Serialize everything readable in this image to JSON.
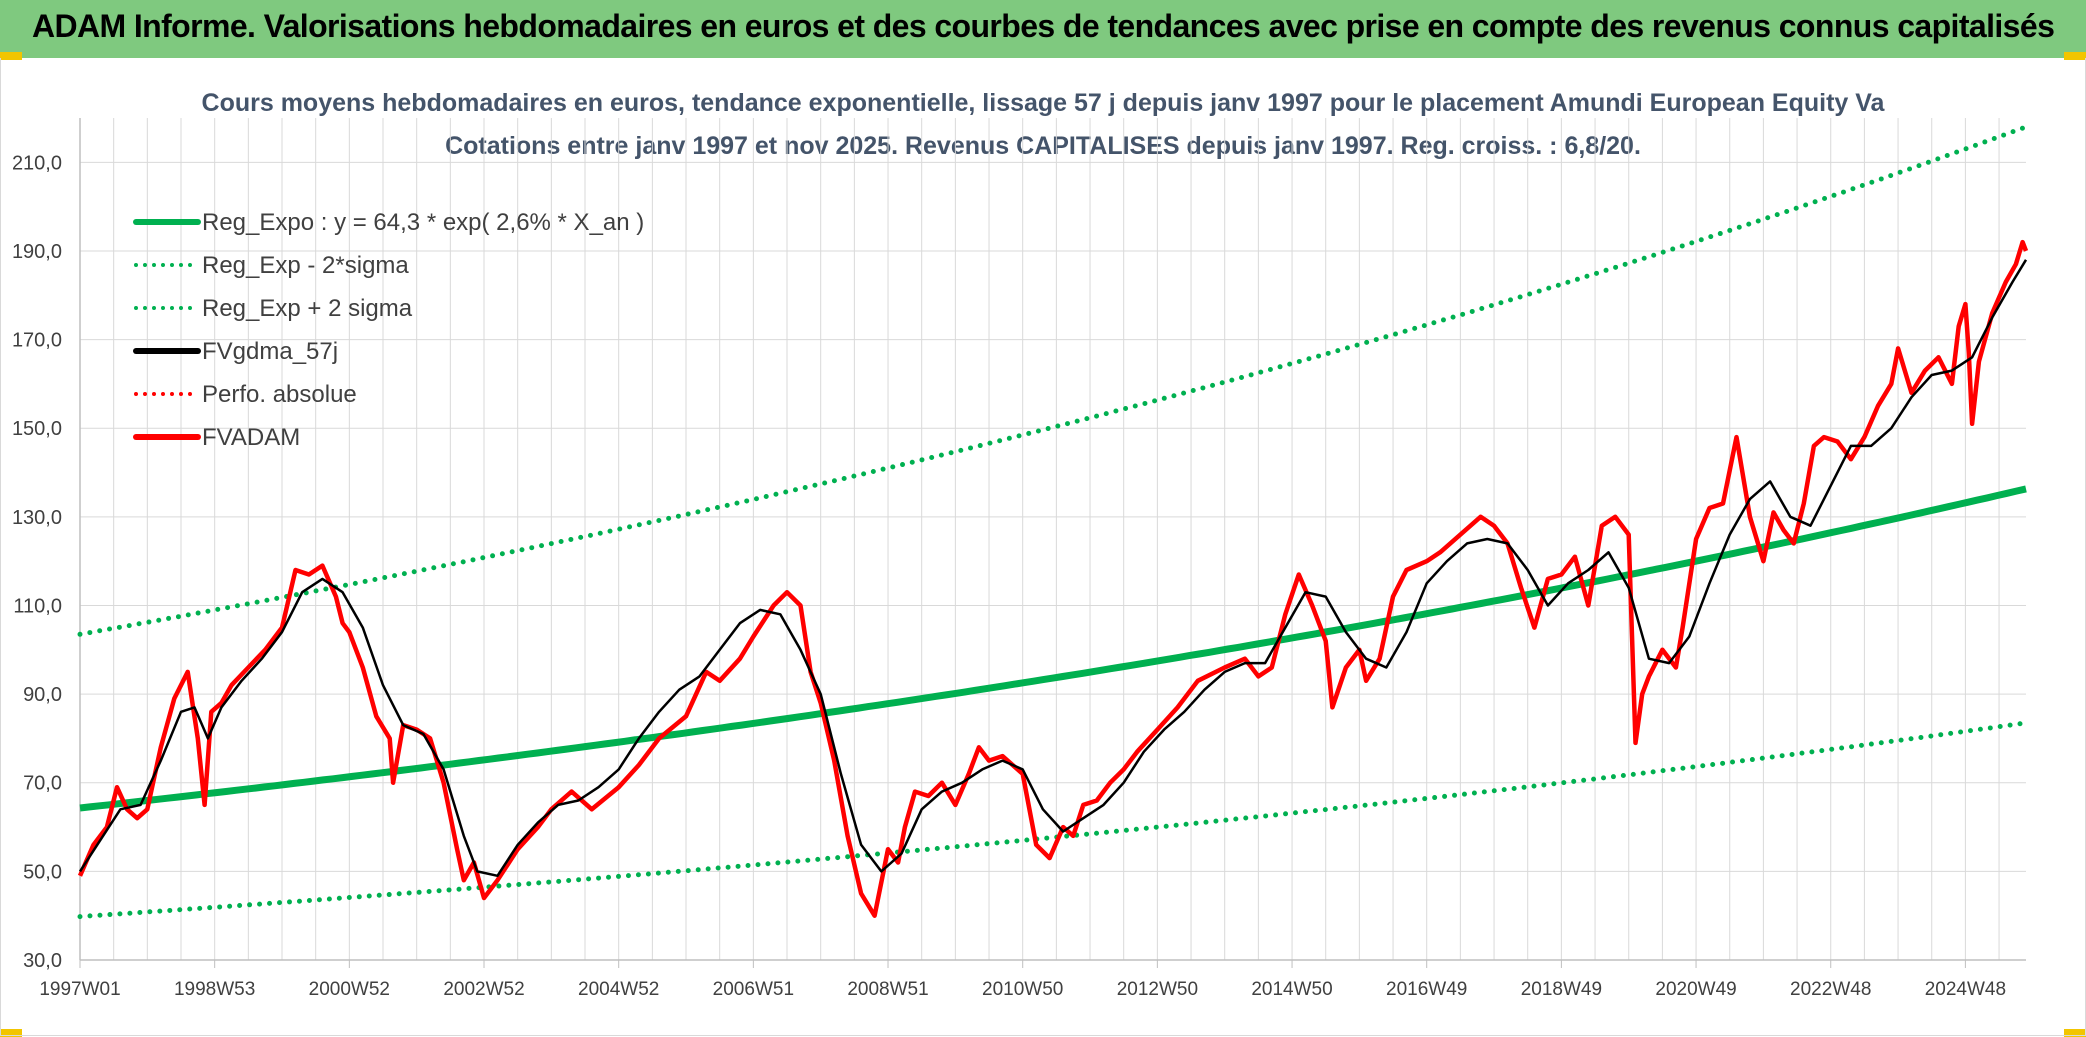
{
  "header": {
    "title": "ADAM Informe. Valorisations hebdomadaires en euros et des courbes de tendances avec prise en compte des revenus connus capitalisés"
  },
  "colors": {
    "banner": "#7fc97f",
    "trend": "#00b050",
    "price": "#ff0000",
    "smooth": "#000000",
    "corner": "#f2c500"
  },
  "chart_data": {
    "type": "line",
    "title_line1": "Cours moyens hebdomadaires en euros, tendance exponentielle, lissage 57 j depuis janv 1997 pour le placement Amundi European Equity Va",
    "title_line2": "Cotations entre janv 1997 et nov 2025. Revenus CAPITALISES depuis janv 1997. Reg. croiss. : 6,8/20.",
    "ylim": [
      30,
      220
    ],
    "yticks": [
      "30,0",
      "50,0",
      "70,0",
      "90,0",
      "110,0",
      "130,0",
      "150,0",
      "170,0",
      "190,0",
      "210,0"
    ],
    "ytick_values": [
      30,
      50,
      70,
      90,
      110,
      130,
      150,
      170,
      190,
      210
    ],
    "xlim": [
      1997.0,
      2025.9
    ],
    "xticks": [
      "1997W01",
      "1998W53",
      "2000W52",
      "2002W52",
      "2004W52",
      "2006W51",
      "2008W51",
      "2010W50",
      "2012W50",
      "2014W50",
      "2016W49",
      "2018W49",
      "2020W49",
      "2022W48",
      "2024W48"
    ],
    "xtick_values": [
      1997.0,
      1999.0,
      2001.0,
      2003.0,
      2005.0,
      2007.0,
      2009.0,
      2011.0,
      2013.0,
      2015.0,
      2017.0,
      2019.0,
      2021.0,
      2023.0,
      2025.0
    ],
    "xgrid_values": [
      1997.5,
      1998.0,
      1998.5,
      1999.5,
      2000.0,
      2000.5,
      2001.5,
      2002.0,
      2002.5,
      2003.5,
      2004.0,
      2004.5,
      2005.5,
      2006.0,
      2006.5,
      2007.5,
      2008.0,
      2008.5,
      2009.5,
      2010.0,
      2010.5,
      2011.5,
      2012.0,
      2012.5,
      2013.5,
      2014.0,
      2014.5,
      2015.5,
      2016.0,
      2016.5,
      2017.5,
      2018.0,
      2018.5,
      2019.5,
      2020.0,
      2020.5,
      2021.5,
      2022.0,
      2022.5,
      2023.5,
      2024.0,
      2024.5,
      2025.5
    ],
    "legend": [
      {
        "label": "Reg_Expo : y = 64,3 * exp( 2,6% *  X_an )",
        "style": "solid",
        "color": "#00b050"
      },
      {
        "label": "Reg_Exp - 2*sigma",
        "style": "dotted",
        "color": "#00b050"
      },
      {
        "label": "Reg_Exp + 2 sigma",
        "style": "dotted",
        "color": "#00b050"
      },
      {
        "label": "FVgdma_57j",
        "style": "solid",
        "color": "#000000"
      },
      {
        "label": "Perfo. absolue",
        "style": "dotted",
        "color": "#ff0000"
      },
      {
        "label": "FVADAM",
        "style": "solid",
        "color": "#ff0000"
      }
    ],
    "trend": {
      "a": 64.3,
      "rate": 0.026,
      "start_year": 1997.0
    },
    "lower_band": {
      "start": 39.8,
      "end": 83.5
    },
    "upper_band": {
      "start": 103.5,
      "end": 218.0
    },
    "series": [
      {
        "name": "FVADAM",
        "x": [
          1997.0,
          1997.2,
          1997.4,
          1997.55,
          1997.7,
          1997.85,
          1998.0,
          1998.2,
          1998.4,
          1998.6,
          1998.75,
          1998.85,
          1998.95,
          1999.1,
          1999.25,
          1999.5,
          1999.75,
          2000.0,
          2000.2,
          2000.4,
          2000.6,
          2000.8,
          2000.9,
          2001.0,
          2001.2,
          2001.4,
          2001.6,
          2001.65,
          2001.8,
          2002.0,
          2002.2,
          2002.4,
          2002.6,
          2002.7,
          2002.85,
          2003.0,
          2003.2,
          2003.5,
          2003.8,
          2004.0,
          2004.3,
          2004.6,
          2005.0,
          2005.3,
          2005.6,
          2006.0,
          2006.3,
          2006.5,
          2006.8,
          2007.0,
          2007.3,
          2007.5,
          2007.7,
          2007.85,
          2008.0,
          2008.2,
          2008.4,
          2008.6,
          2008.8,
          2009.0,
          2009.15,
          2009.25,
          2009.4,
          2009.6,
          2009.8,
          2010.0,
          2010.2,
          2010.35,
          2010.5,
          2010.7,
          2011.0,
          2011.2,
          2011.4,
          2011.6,
          2011.75,
          2011.9,
          2012.1,
          2012.3,
          2012.5,
          2012.7,
          2013.0,
          2013.3,
          2013.6,
          2014.0,
          2014.3,
          2014.5,
          2014.7,
          2014.9,
          2015.1,
          2015.3,
          2015.5,
          2015.6,
          2015.8,
          2016.0,
          2016.1,
          2016.3,
          2016.5,
          2016.7,
          2017.0,
          2017.2,
          2017.5,
          2017.8,
          2018.0,
          2018.2,
          2018.4,
          2018.6,
          2018.8,
          2019.0,
          2019.2,
          2019.4,
          2019.6,
          2019.8,
          2020.0,
          2020.1,
          2020.2,
          2020.3,
          2020.5,
          2020.7,
          2020.8,
          2021.0,
          2021.2,
          2021.4,
          2021.6,
          2021.8,
          2022.0,
          2022.15,
          2022.3,
          2022.45,
          2022.6,
          2022.75,
          2022.9,
          2023.1,
          2023.3,
          2023.5,
          2023.7,
          2023.9,
          2024.0,
          2024.2,
          2024.4,
          2024.6,
          2024.8,
          2024.9,
          2025.0,
          2025.05,
          2025.1,
          2025.2,
          2025.4,
          2025.6,
          2025.75,
          2025.85,
          2025.9
        ],
        "values": [
          49,
          56,
          60,
          69,
          64,
          62,
          64,
          78,
          89,
          95,
          80,
          65,
          86,
          88,
          92,
          96,
          100,
          105,
          118,
          117,
          119,
          112,
          106,
          104,
          96,
          85,
          80,
          70,
          83,
          82,
          80,
          70,
          55,
          48,
          52,
          44,
          48,
          55,
          60,
          64,
          68,
          64,
          69,
          74,
          80,
          85,
          95,
          93,
          98,
          103,
          110,
          113,
          110,
          95,
          88,
          75,
          58,
          45,
          40,
          55,
          52,
          60,
          68,
          67,
          70,
          65,
          72,
          78,
          75,
          76,
          72,
          56,
          53,
          60,
          58,
          65,
          66,
          70,
          73,
          77,
          82,
          87,
          93,
          96,
          98,
          94,
          96,
          108,
          117,
          110,
          102,
          87,
          96,
          100,
          93,
          98,
          112,
          118,
          120,
          122,
          126,
          130,
          128,
          124,
          114,
          105,
          116,
          117,
          121,
          110,
          128,
          130,
          126,
          79,
          90,
          94,
          100,
          96,
          105,
          125,
          132,
          133,
          148,
          130,
          120,
          131,
          127,
          124,
          133,
          146,
          148,
          147,
          143,
          148,
          155,
          160,
          168,
          158,
          163,
          166,
          160,
          173,
          178,
          167,
          151,
          165,
          176,
          183,
          187,
          192,
          190
        ]
      },
      {
        "name": "FVgdma_57j",
        "x": [
          1997.0,
          1997.3,
          1997.6,
          1997.9,
          1998.2,
          1998.5,
          1998.7,
          1998.9,
          1999.1,
          1999.4,
          1999.7,
          2000.0,
          2000.3,
          2000.6,
          2000.9,
          2001.2,
          2001.5,
          2001.8,
          2002.1,
          2002.4,
          2002.7,
          2002.9,
          2003.2,
          2003.5,
          2003.8,
          2004.1,
          2004.4,
          2004.7,
          2005.0,
          2005.3,
          2005.6,
          2005.9,
          2006.2,
          2006.5,
          2006.8,
          2007.1,
          2007.4,
          2007.7,
          2008.0,
          2008.3,
          2008.6,
          2008.9,
          2009.2,
          2009.5,
          2009.8,
          2010.1,
          2010.4,
          2010.7,
          2011.0,
          2011.3,
          2011.6,
          2011.9,
          2012.2,
          2012.5,
          2012.8,
          2013.1,
          2013.4,
          2013.7,
          2014.0,
          2014.3,
          2014.6,
          2014.9,
          2015.2,
          2015.5,
          2015.8,
          2016.1,
          2016.4,
          2016.7,
          2017.0,
          2017.3,
          2017.6,
          2017.9,
          2018.2,
          2018.5,
          2018.8,
          2019.1,
          2019.4,
          2019.7,
          2020.0,
          2020.3,
          2020.6,
          2020.9,
          2021.2,
          2021.5,
          2021.8,
          2022.1,
          2022.4,
          2022.7,
          2023.0,
          2023.3,
          2023.6,
          2023.9,
          2024.2,
          2024.5,
          2024.8,
          2025.1,
          2025.4,
          2025.7,
          2025.9
        ],
        "values": [
          50,
          57,
          64,
          65,
          75,
          86,
          87,
          80,
          87,
          93,
          98,
          104,
          113,
          116,
          113,
          105,
          92,
          83,
          81,
          73,
          58,
          50,
          49,
          56,
          61,
          65,
          66,
          69,
          73,
          80,
          86,
          91,
          94,
          100,
          106,
          109,
          108,
          100,
          90,
          72,
          56,
          50,
          54,
          64,
          68,
          70,
          73,
          75,
          73,
          64,
          59,
          62,
          65,
          70,
          77,
          82,
          86,
          91,
          95,
          97,
          97,
          105,
          113,
          112,
          104,
          98,
          96,
          104,
          115,
          120,
          124,
          125,
          124,
          118,
          110,
          115,
          118,
          122,
          114,
          98,
          97,
          103,
          115,
          126,
          134,
          138,
          130,
          128,
          137,
          146,
          146,
          150,
          157,
          162,
          163,
          166,
          175,
          183,
          188
        ]
      }
    ]
  }
}
